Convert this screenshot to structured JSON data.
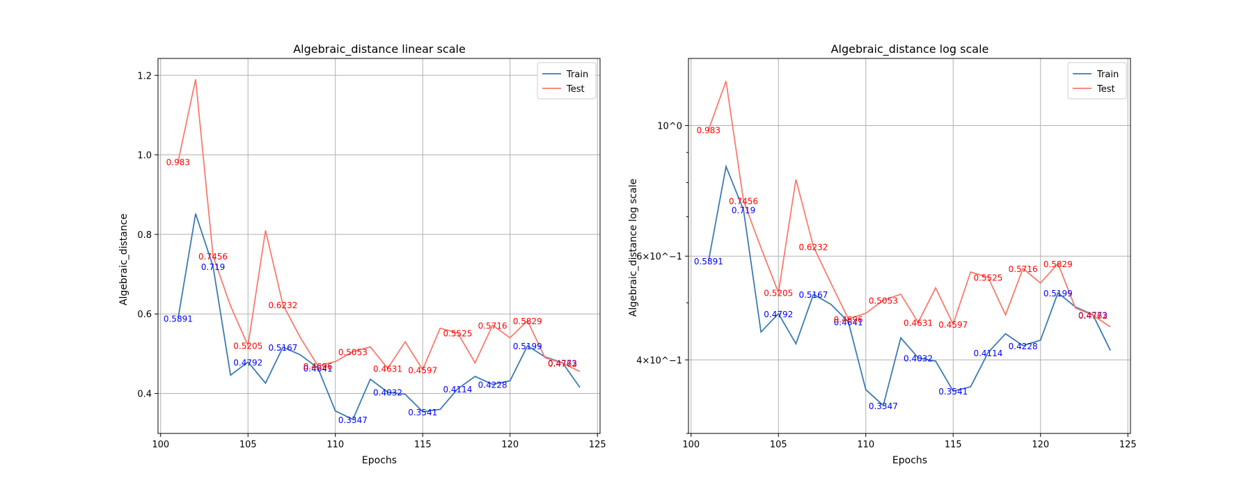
{
  "colors": {
    "train": "#3a7ab5",
    "test": "#f97a6d",
    "train_label": "#0000ff",
    "test_label": "#ff0000",
    "grid": "#b0b0b0"
  },
  "chart_data": [
    {
      "type": "line",
      "title": "Algebraic_distance linear scale",
      "xlabel": "Epochs",
      "ylabel": "Algebraic_distance",
      "yscale": "linear",
      "xlim": [
        99.85,
        125.15
      ],
      "ylim": [
        0.2995,
        1.2425
      ],
      "xticks": [
        100,
        105,
        110,
        115,
        120,
        125
      ],
      "yticks": [
        0.4,
        0.6,
        0.8,
        1.0,
        1.2
      ],
      "ytick_labels": [
        "0.4",
        "0.6",
        "0.8",
        "1.0",
        "1.2"
      ],
      "grid": true,
      "legend": "top-right",
      "x": [
        101,
        102,
        103,
        104,
        105,
        106,
        107,
        108,
        109,
        110,
        111,
        112,
        113,
        114,
        115,
        116,
        117,
        118,
        119,
        120,
        121,
        122,
        123,
        124
      ],
      "series": [
        {
          "name": "Train",
          "values": [
            0.5891,
            0.852,
            0.719,
            0.446,
            0.4792,
            0.426,
            0.5167,
            0.497,
            0.4641,
            0.356,
            0.3347,
            0.436,
            0.4032,
            0.398,
            0.3541,
            0.36,
            0.4114,
            0.443,
            0.4228,
            0.432,
            0.5199,
            0.492,
            0.4773,
            0.415
          ]
        },
        {
          "name": "Test",
          "values": [
            0.983,
            1.19,
            0.7456,
            0.62,
            0.5205,
            0.81,
            0.6232,
            0.54,
            0.4696,
            0.48,
            0.5053,
            0.517,
            0.4631,
            0.53,
            0.4597,
            0.564,
            0.5525,
            0.477,
            0.5716,
            0.54,
            0.5829,
            0.49,
            0.4762,
            0.455
          ]
        }
      ],
      "annotations": [
        {
          "series": "Train",
          "x": 101,
          "text": "0.5891"
        },
        {
          "series": "Train",
          "x": 103,
          "text": "0.719"
        },
        {
          "series": "Train",
          "x": 105,
          "text": "0.4792"
        },
        {
          "series": "Train",
          "x": 107,
          "text": "0.5167"
        },
        {
          "series": "Train",
          "x": 109,
          "text": "0.4641"
        },
        {
          "series": "Train",
          "x": 111,
          "text": "0.3347"
        },
        {
          "series": "Train",
          "x": 113,
          "text": "0.4032"
        },
        {
          "series": "Train",
          "x": 115,
          "text": "0.3541"
        },
        {
          "series": "Train",
          "x": 117,
          "text": "0.4114"
        },
        {
          "series": "Train",
          "x": 119,
          "text": "0.4228"
        },
        {
          "series": "Train",
          "x": 121,
          "text": "0.5199"
        },
        {
          "series": "Train",
          "x": 123,
          "text": "0.4773"
        },
        {
          "series": "Test",
          "x": 101,
          "text": "0.983"
        },
        {
          "series": "Test",
          "x": 103,
          "text": "0.7456"
        },
        {
          "series": "Test",
          "x": 105,
          "text": "0.5205"
        },
        {
          "series": "Test",
          "x": 107,
          "text": "0.6232"
        },
        {
          "series": "Test",
          "x": 109,
          "text": "0.4696"
        },
        {
          "series": "Test",
          "x": 111,
          "text": "0.5053"
        },
        {
          "series": "Test",
          "x": 113,
          "text": "0.4631"
        },
        {
          "series": "Test",
          "x": 115,
          "text": "0.4597"
        },
        {
          "series": "Test",
          "x": 117,
          "text": "0.5525"
        },
        {
          "series": "Test",
          "x": 119,
          "text": "0.5716"
        },
        {
          "series": "Test",
          "x": 121,
          "text": "0.5829"
        },
        {
          "series": "Test",
          "x": 123,
          "text": "0.4762"
        }
      ]
    },
    {
      "type": "line",
      "title": "Algebraic_distance log scale",
      "xlabel": "Epochs",
      "ylabel": "Algebraic_distance log scale",
      "yscale": "log",
      "xlim": [
        99.85,
        125.15
      ],
      "ylim": [
        0.3,
        1.3
      ],
      "xticks": [
        100,
        105,
        110,
        115,
        120,
        125
      ],
      "yticks": [
        1.0,
        0.6,
        0.4
      ],
      "ytick_labels": [
        "10^0",
        "6×10^−1",
        "4×10^−1"
      ],
      "grid": true,
      "legend": "top-right",
      "x": [
        101,
        102,
        103,
        104,
        105,
        106,
        107,
        108,
        109,
        110,
        111,
        112,
        113,
        114,
        115,
        116,
        117,
        118,
        119,
        120,
        121,
        122,
        123,
        124
      ],
      "series": [
        {
          "name": "Train",
          "values": [
            0.5891,
            0.852,
            0.719,
            0.446,
            0.4792,
            0.426,
            0.5167,
            0.497,
            0.4641,
            0.356,
            0.3347,
            0.436,
            0.4032,
            0.398,
            0.3541,
            0.36,
            0.4114,
            0.443,
            0.4228,
            0.432,
            0.5199,
            0.492,
            0.4773,
            0.415
          ]
        },
        {
          "name": "Test",
          "values": [
            0.983,
            1.19,
            0.7456,
            0.62,
            0.5205,
            0.81,
            0.6232,
            0.54,
            0.4696,
            0.48,
            0.5053,
            0.517,
            0.4631,
            0.53,
            0.4597,
            0.564,
            0.5525,
            0.477,
            0.5716,
            0.54,
            0.5829,
            0.49,
            0.4762,
            0.455
          ]
        }
      ],
      "annotations": [
        {
          "series": "Train",
          "x": 101,
          "text": "0.5891"
        },
        {
          "series": "Train",
          "x": 103,
          "text": "0.719"
        },
        {
          "series": "Train",
          "x": 105,
          "text": "0.4792"
        },
        {
          "series": "Train",
          "x": 107,
          "text": "0.5167"
        },
        {
          "series": "Train",
          "x": 109,
          "text": "0.4641"
        },
        {
          "series": "Train",
          "x": 111,
          "text": "0.3347"
        },
        {
          "series": "Train",
          "x": 113,
          "text": "0.4032"
        },
        {
          "series": "Train",
          "x": 115,
          "text": "0.3541"
        },
        {
          "series": "Train",
          "x": 117,
          "text": "0.4114"
        },
        {
          "series": "Train",
          "x": 119,
          "text": "0.4228"
        },
        {
          "series": "Train",
          "x": 121,
          "text": "0.5199"
        },
        {
          "series": "Train",
          "x": 123,
          "text": "0.4773"
        },
        {
          "series": "Test",
          "x": 101,
          "text": "0.983"
        },
        {
          "series": "Test",
          "x": 103,
          "text": "0.7456"
        },
        {
          "series": "Test",
          "x": 105,
          "text": "0.5205"
        },
        {
          "series": "Test",
          "x": 107,
          "text": "0.6232"
        },
        {
          "series": "Test",
          "x": 109,
          "text": "0.4696"
        },
        {
          "series": "Test",
          "x": 111,
          "text": "0.5053"
        },
        {
          "series": "Test",
          "x": 113,
          "text": "0.4631"
        },
        {
          "series": "Test",
          "x": 115,
          "text": "0.4597"
        },
        {
          "series": "Test",
          "x": 117,
          "text": "0.5525"
        },
        {
          "series": "Test",
          "x": 119,
          "text": "0.5716"
        },
        {
          "series": "Test",
          "x": 121,
          "text": "0.5829"
        },
        {
          "series": "Test",
          "x": 123,
          "text": "0.4762"
        }
      ]
    }
  ]
}
